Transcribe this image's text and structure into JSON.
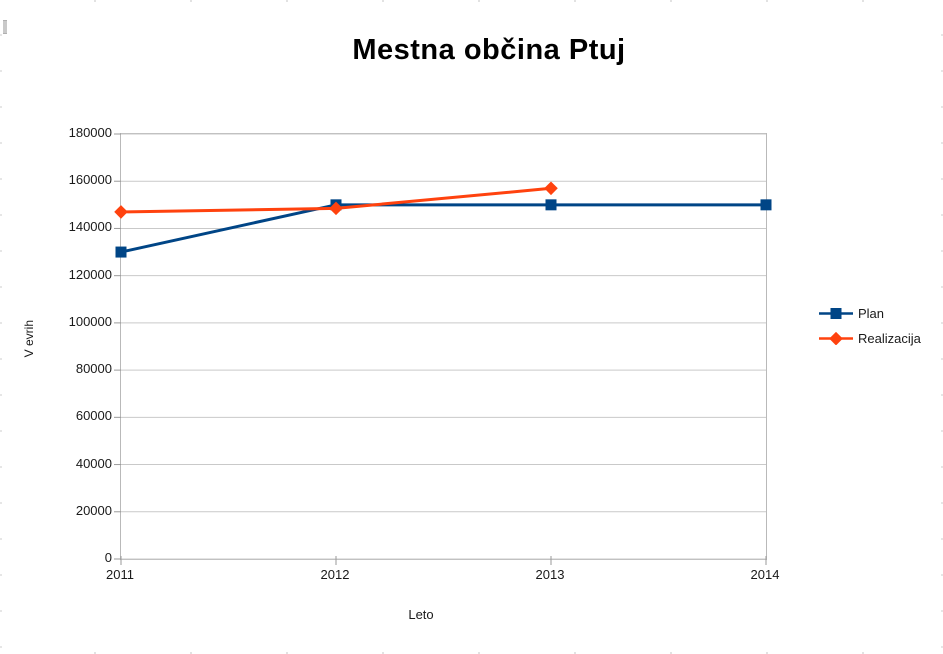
{
  "chart_data": {
    "type": "line",
    "title": "Mestna občina Ptuj",
    "xlabel": "Leto",
    "ylabel": "V evrih",
    "categories": [
      "2011",
      "2012",
      "2013",
      "2014"
    ],
    "series": [
      {
        "name": "Plan",
        "color": "#004586",
        "marker": "square",
        "values": [
          130000,
          150000,
          150000,
          150000
        ]
      },
      {
        "name": "Realizacija",
        "color": "#FF420E",
        "marker": "diamond",
        "values": [
          147000,
          148500,
          157000,
          null
        ]
      }
    ],
    "ylim": [
      0,
      180000
    ],
    "ytick_step": 20000,
    "ytick_labels": [
      "0",
      "20000",
      "40000",
      "60000",
      "80000",
      "100000",
      "120000",
      "140000",
      "160000",
      "180000"
    ],
    "grid": "horizontal",
    "legend_position": "right",
    "colors": {
      "gridline": "#c9c9c9",
      "axis": "#9a9a9a",
      "plot_border": "#b9b9b9",
      "text": "#1a1a1a",
      "title": "#000000",
      "background": "#ffffff"
    }
  }
}
